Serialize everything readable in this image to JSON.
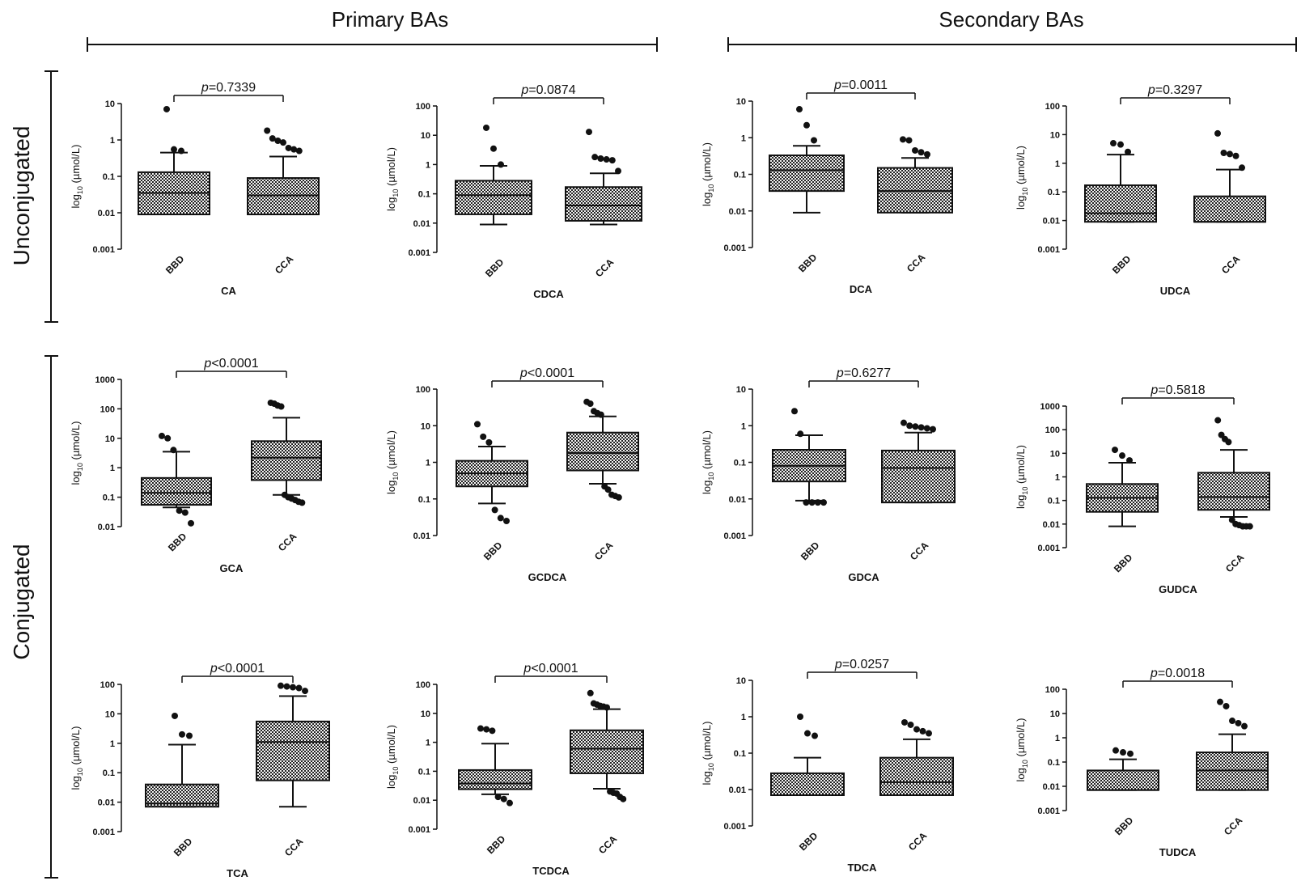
{
  "header": {
    "primary": "Primary BAs",
    "secondary": "Secondary BAs",
    "unconjugated": "Unconjugated",
    "conjugated": "Conjugated"
  },
  "colors": {
    "ink": "#111111",
    "box_fill": "#b8b8b8"
  },
  "chart_data": [
    {
      "type": "box",
      "id": "CA",
      "xlabel": "CA",
      "ylabel": "log10 (µmol/L)",
      "categories": [
        "BBD",
        "CCA"
      ],
      "ylim": [
        0.001,
        10
      ],
      "yscale": "log",
      "ticks": [
        "10",
        "1",
        "0.1",
        "0.01",
        "0.001"
      ],
      "p_prefix": "p",
      "p_rest": "=0.7339",
      "series": [
        {
          "name": "BBD",
          "whisker_low": 0.009,
          "q1": 0.009,
          "median": 0.035,
          "q3": 0.13,
          "whisker_high": 0.45,
          "outliers": [
            7,
            0.55,
            0.5
          ]
        },
        {
          "name": "CCA",
          "whisker_low": 0.009,
          "q1": 0.009,
          "median": 0.03,
          "q3": 0.09,
          "whisker_high": 0.35,
          "outliers": [
            1.8,
            1.1,
            0.95,
            0.85,
            0.6,
            0.55,
            0.5
          ]
        }
      ]
    },
    {
      "type": "box",
      "id": "CDCA",
      "xlabel": "CDCA",
      "ylabel": "log10 (µmol/L)",
      "categories": [
        "BBD",
        "CCA"
      ],
      "ylim": [
        0.001,
        100
      ],
      "yscale": "log",
      "ticks": [
        "100",
        "10",
        "1",
        "0.1",
        "0.01",
        "0.001"
      ],
      "p_prefix": "p",
      "p_rest": "=0.0874",
      "series": [
        {
          "name": "BBD",
          "whisker_low": 0.009,
          "q1": 0.02,
          "median": 0.09,
          "q3": 0.28,
          "whisker_high": 0.9,
          "outliers": [
            18,
            3.5,
            1.0
          ]
        },
        {
          "name": "CCA",
          "whisker_low": 0.009,
          "q1": 0.012,
          "median": 0.04,
          "q3": 0.17,
          "whisker_high": 0.5,
          "outliers": [
            13,
            1.8,
            1.6,
            1.5,
            1.4,
            0.6
          ]
        }
      ]
    },
    {
      "type": "box",
      "id": "DCA",
      "xlabel": "DCA",
      "ylabel": "log10 (µmol/L)",
      "categories": [
        "BBD",
        "CCA"
      ],
      "ylim": [
        0.001,
        10
      ],
      "yscale": "log",
      "ticks": [
        "10",
        "1",
        "0.1",
        "0.01",
        "0.001"
      ],
      "p_prefix": "p",
      "p_rest": "=0.0011",
      "series": [
        {
          "name": "BBD",
          "whisker_low": 0.009,
          "q1": 0.035,
          "median": 0.13,
          "q3": 0.33,
          "whisker_high": 0.6,
          "outliers": [
            6,
            2.2,
            0.85
          ]
        },
        {
          "name": "CCA",
          "whisker_low": 0.009,
          "q1": 0.009,
          "median": 0.035,
          "q3": 0.15,
          "whisker_high": 0.28,
          "outliers": [
            0.9,
            0.85,
            0.45,
            0.4,
            0.35
          ]
        }
      ]
    },
    {
      "type": "box",
      "id": "UDCA",
      "xlabel": "UDCA",
      "ylabel": "log10 (µmol/L)",
      "categories": [
        "BBD",
        "CCA"
      ],
      "ylim": [
        0.001,
        100
      ],
      "yscale": "log",
      "ticks": [
        "100",
        "10",
        "1",
        "0.1",
        "0.01",
        "0.001"
      ],
      "p_prefix": "p",
      "p_rest": "=0.3297",
      "series": [
        {
          "name": "BBD",
          "whisker_low": 0.009,
          "q1": 0.009,
          "median": 0.018,
          "q3": 0.17,
          "whisker_high": 2.0,
          "outliers": [
            5,
            4.5,
            2.5
          ]
        },
        {
          "name": "CCA",
          "whisker_low": 0.009,
          "q1": 0.009,
          "median": 0.009,
          "q3": 0.07,
          "whisker_high": 0.6,
          "outliers": [
            11,
            2.3,
            2.1,
            1.8,
            0.7
          ]
        }
      ]
    },
    {
      "type": "box",
      "id": "GCA",
      "xlabel": "GCA",
      "ylabel": "log10 (µmol/L)",
      "categories": [
        "BBD",
        "CCA"
      ],
      "ylim": [
        0.01,
        1000
      ],
      "yscale": "log",
      "ticks": [
        "1000",
        "100",
        "10",
        "1",
        "0.1",
        "0.01"
      ],
      "p_prefix": "p",
      "p_rest": "<0.0001",
      "series": [
        {
          "name": "BBD",
          "whisker_low": 0.045,
          "q1": 0.055,
          "median": 0.14,
          "q3": 0.45,
          "whisker_high": 3.5,
          "outliers": [
            12,
            10,
            4,
            0.035,
            0.03,
            0.013
          ]
        },
        {
          "name": "CCA",
          "whisker_low": 0.12,
          "q1": 0.38,
          "median": 2.2,
          "q3": 8,
          "whisker_high": 50,
          "outliers": [
            160,
            150,
            130,
            120,
            0.12,
            0.1,
            0.09,
            0.08,
            0.07,
            0.065
          ]
        }
      ]
    },
    {
      "type": "box",
      "id": "GCDCA",
      "xlabel": "GCDCA",
      "ylabel": "log10 (µmol/L)",
      "categories": [
        "BBD",
        "CCA"
      ],
      "ylim": [
        0.01,
        100
      ],
      "yscale": "log",
      "ticks": [
        "100",
        "10",
        "1",
        "0.1",
        "0.01"
      ],
      "p_prefix": "p",
      "p_rest": "<0.0001",
      "series": [
        {
          "name": "BBD",
          "whisker_low": 0.075,
          "q1": 0.22,
          "median": 0.5,
          "q3": 1.1,
          "whisker_high": 2.7,
          "outliers": [
            11,
            5,
            3.5,
            0.05,
            0.03,
            0.025
          ]
        },
        {
          "name": "CCA",
          "whisker_low": 0.26,
          "q1": 0.6,
          "median": 1.8,
          "q3": 6.5,
          "whisker_high": 18,
          "outliers": [
            45,
            40,
            25,
            22,
            20,
            0.22,
            0.18,
            0.13,
            0.12,
            0.11
          ]
        }
      ]
    },
    {
      "type": "box",
      "id": "GDCA",
      "xlabel": "GDCA",
      "ylabel": "log10 (µmol/L)",
      "categories": [
        "BBD",
        "CCA"
      ],
      "ylim": [
        0.001,
        10
      ],
      "yscale": "log",
      "ticks": [
        "10",
        "1",
        "0.1",
        "0.01",
        "0.001"
      ],
      "p_prefix": "p",
      "p_rest": "=0.6277",
      "series": [
        {
          "name": "BBD",
          "whisker_low": 0.009,
          "q1": 0.03,
          "median": 0.08,
          "q3": 0.22,
          "whisker_high": 0.55,
          "outliers": [
            2.5,
            0.6,
            0.008,
            0.008,
            0.008,
            0.008
          ]
        },
        {
          "name": "CCA",
          "whisker_low": 0.008,
          "q1": 0.008,
          "median": 0.07,
          "q3": 0.21,
          "whisker_high": 0.65,
          "outliers": [
            1.2,
            1.0,
            0.95,
            0.9,
            0.85,
            0.8
          ]
        }
      ]
    },
    {
      "type": "box",
      "id": "GUDCA",
      "xlabel": "GUDCA",
      "ylabel": "log10 (µmol/L)",
      "categories": [
        "BBD",
        "CCA"
      ],
      "ylim": [
        0.001,
        1000
      ],
      "yscale": "log",
      "ticks": [
        "1000",
        "100",
        "10",
        "1",
        "0.1",
        "0.01",
        "0.001"
      ],
      "p_prefix": "p",
      "p_rest": "=0.5818",
      "series": [
        {
          "name": "BBD",
          "whisker_low": 0.008,
          "q1": 0.033,
          "median": 0.13,
          "q3": 0.5,
          "whisker_high": 4,
          "outliers": [
            14,
            8,
            5
          ]
        },
        {
          "name": "CCA",
          "whisker_low": 0.02,
          "q1": 0.04,
          "median": 0.14,
          "q3": 1.5,
          "whisker_high": 14,
          "outliers": [
            250,
            60,
            40,
            30,
            0.015,
            0.01,
            0.009,
            0.008,
            0.008,
            0.008
          ]
        }
      ]
    },
    {
      "type": "box",
      "id": "TCA",
      "xlabel": "TCA",
      "ylabel": "log10 (µmol/L)",
      "categories": [
        "BBD",
        "CCA"
      ],
      "ylim": [
        0.001,
        100
      ],
      "yscale": "log",
      "ticks": [
        "100",
        "10",
        "1",
        "0.1",
        "0.01",
        "0.001"
      ],
      "p_prefix": "p",
      "p_rest": "<0.0001",
      "series": [
        {
          "name": "BBD",
          "whisker_low": 0.007,
          "q1": 0.007,
          "median": 0.009,
          "q3": 0.04,
          "whisker_high": 0.9,
          "outliers": [
            8.5,
            2,
            1.8
          ]
        },
        {
          "name": "CCA",
          "whisker_low": 0.007,
          "q1": 0.055,
          "median": 1.1,
          "q3": 5.5,
          "whisker_high": 40,
          "outliers": [
            90,
            85,
            80,
            75,
            60
          ]
        }
      ]
    },
    {
      "type": "box",
      "id": "TCDCA",
      "xlabel": "TCDCA",
      "ylabel": "log10 (µmol/L)",
      "categories": [
        "BBD",
        "CCA"
      ],
      "ylim": [
        0.001,
        100
      ],
      "yscale": "log",
      "ticks": [
        "100",
        "10",
        "1",
        "0.1",
        "0.01",
        "0.001"
      ],
      "p_prefix": "p",
      "p_rest": "<0.0001",
      "series": [
        {
          "name": "BBD",
          "whisker_low": 0.016,
          "q1": 0.024,
          "median": 0.038,
          "q3": 0.11,
          "whisker_high": 0.9,
          "outliers": [
            3,
            2.8,
            2.5,
            0.013,
            0.011,
            0.008
          ]
        },
        {
          "name": "CCA",
          "whisker_low": 0.025,
          "q1": 0.085,
          "median": 0.6,
          "q3": 2.6,
          "whisker_high": 14,
          "outliers": [
            50,
            22,
            20,
            18,
            17,
            16,
            0.02,
            0.018,
            0.017,
            0.013,
            0.011
          ]
        }
      ]
    },
    {
      "type": "box",
      "id": "TDCA",
      "xlabel": "TDCA",
      "ylabel": "log10 (µmol/L)",
      "categories": [
        "BBD",
        "CCA"
      ],
      "ylim": [
        0.001,
        10
      ],
      "yscale": "log",
      "ticks": [
        "10",
        "1",
        "0.1",
        "0.01",
        "0.001"
      ],
      "p_prefix": "p",
      "p_rest": "=0.0257",
      "series": [
        {
          "name": "BBD",
          "whisker_low": 0.007,
          "q1": 0.007,
          "median": 0.007,
          "q3": 0.028,
          "whisker_high": 0.075,
          "outliers": [
            1.0,
            0.35,
            0.3
          ]
        },
        {
          "name": "CCA",
          "whisker_low": 0.007,
          "q1": 0.007,
          "median": 0.016,
          "q3": 0.075,
          "whisker_high": 0.24,
          "outliers": [
            0.7,
            0.6,
            0.45,
            0.4,
            0.35
          ]
        }
      ]
    },
    {
      "type": "box",
      "id": "TUDCA",
      "xlabel": "TUDCA",
      "ylabel": "log10 (µmol/L)",
      "categories": [
        "BBD",
        "CCA"
      ],
      "ylim": [
        0.001,
        100
      ],
      "yscale": "log",
      "ticks": [
        "100",
        "10",
        "1",
        "0.1",
        "0.01",
        "0.001"
      ],
      "p_prefix": "p",
      "p_rest": "=0.0018",
      "series": [
        {
          "name": "BBD",
          "whisker_low": 0.007,
          "q1": 0.007,
          "median": 0.007,
          "q3": 0.045,
          "whisker_high": 0.13,
          "outliers": [
            0.3,
            0.25,
            0.22
          ]
        },
        {
          "name": "CCA",
          "whisker_low": 0.007,
          "q1": 0.007,
          "median": 0.045,
          "q3": 0.25,
          "whisker_high": 1.4,
          "outliers": [
            30,
            20,
            5,
            4,
            3
          ]
        }
      ]
    }
  ]
}
